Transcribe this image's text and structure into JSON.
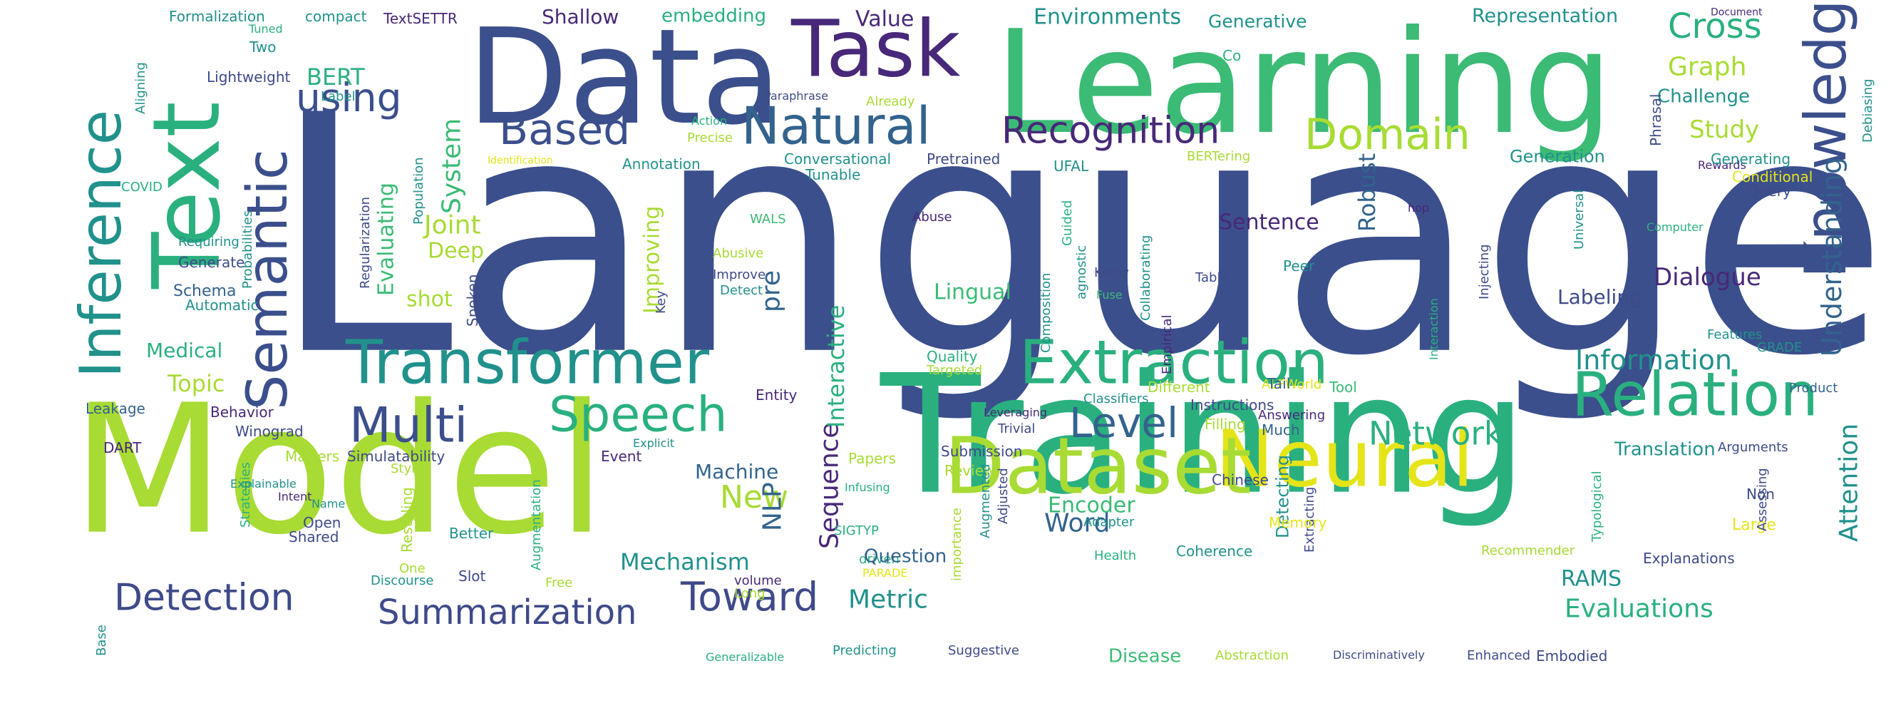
{
  "palette": {
    "navy": "#3b4f8c",
    "blue": "#33638d",
    "teal": "#21918c",
    "sea": "#2ab07f",
    "green": "#3bbb75",
    "lime": "#a8db34",
    "yellow": "#e5e419",
    "purple": "#482878",
    "violet": "#3e4a89"
  },
  "words": [
    {
      "text": "Language"
    },
    {
      "text": "Model"
    },
    {
      "text": "Training"
    },
    {
      "text": "Learning"
    },
    {
      "text": "Data"
    },
    {
      "text": "Text"
    },
    {
      "text": "Task"
    },
    {
      "text": "Neural"
    },
    {
      "text": "Dataset"
    },
    {
      "text": "Knowledge"
    },
    {
      "text": "Inference"
    },
    {
      "text": "Transformer"
    },
    {
      "text": "Extraction"
    },
    {
      "text": "Relation"
    },
    {
      "text": "Semantic"
    },
    {
      "text": "Natural"
    },
    {
      "text": "Speech"
    },
    {
      "text": "Multi"
    },
    {
      "text": "Recognition"
    },
    {
      "text": "Based"
    },
    {
      "text": "Domain"
    },
    {
      "text": "Level"
    },
    {
      "text": "Detection"
    },
    {
      "text": "Summarization"
    },
    {
      "text": "Toward"
    },
    {
      "text": "Understanding"
    },
    {
      "text": "using"
    },
    {
      "text": "Cross"
    },
    {
      "text": "Network"
    },
    {
      "text": "Information"
    },
    {
      "text": "Attention"
    },
    {
      "text": "Dialogue"
    },
    {
      "text": "Sequence"
    },
    {
      "text": "Interactive"
    },
    {
      "text": "Improving"
    },
    {
      "text": "Evaluating"
    },
    {
      "text": "Environments"
    },
    {
      "text": "Representation"
    },
    {
      "text": "Generative"
    },
    {
      "text": "Value"
    },
    {
      "text": "Shallow"
    },
    {
      "text": "embedding"
    },
    {
      "text": "Formalization"
    },
    {
      "text": "compact"
    },
    {
      "text": "TextSETTR"
    },
    {
      "text": "Two"
    },
    {
      "text": "Lightweight"
    },
    {
      "text": "BERT"
    },
    {
      "text": "Tuned"
    },
    {
      "text": "Aligning"
    },
    {
      "text": "Label"
    },
    {
      "text": "Paraphrase"
    },
    {
      "text": "Already"
    },
    {
      "text": "Action"
    },
    {
      "text": "Precise"
    },
    {
      "text": "Identification"
    },
    {
      "text": "Annotation"
    },
    {
      "text": "Conversational"
    },
    {
      "text": "Pretrained"
    },
    {
      "text": "UFAL"
    },
    {
      "text": "BERTering"
    },
    {
      "text": "Rewards"
    },
    {
      "text": "Generation"
    },
    {
      "text": "Study"
    },
    {
      "text": "Graph"
    },
    {
      "text": "Challenge"
    },
    {
      "text": "Document"
    },
    {
      "text": "Debiasing"
    },
    {
      "text": "Phrasal"
    },
    {
      "text": "Generating"
    },
    {
      "text": "Conditional"
    },
    {
      "text": "Query"
    },
    {
      "text": "Co"
    },
    {
      "text": "System"
    },
    {
      "text": "Joint"
    },
    {
      "text": "Deep"
    },
    {
      "text": "shot"
    },
    {
      "text": "pre"
    },
    {
      "text": "Robust"
    },
    {
      "text": "Sentence"
    },
    {
      "text": "Lingual"
    },
    {
      "text": "Labeling"
    },
    {
      "text": "Regularization"
    },
    {
      "text": "Population"
    },
    {
      "text": "COVID"
    },
    {
      "text": "Probabilities"
    },
    {
      "text": "Requiring"
    },
    {
      "text": "Generate"
    },
    {
      "text": "Schema"
    },
    {
      "text": "Automatic"
    },
    {
      "text": "Medical"
    },
    {
      "text": "Topic"
    },
    {
      "text": "Leakage"
    },
    {
      "text": "Behavior"
    },
    {
      "text": "Winograd"
    },
    {
      "text": "DART"
    },
    {
      "text": "Matters"
    },
    {
      "text": "Simulatability"
    },
    {
      "text": "Style"
    },
    {
      "text": "Strategies"
    },
    {
      "text": "Explainable"
    },
    {
      "text": "Intent"
    },
    {
      "text": "Name"
    },
    {
      "text": "Spoken"
    },
    {
      "text": "Restyling"
    },
    {
      "text": "Open"
    },
    {
      "text": "Shared"
    },
    {
      "text": "Better"
    },
    {
      "text": "Slot"
    },
    {
      "text": "One"
    },
    {
      "text": "Discourse"
    },
    {
      "text": "Free"
    },
    {
      "text": "Generalizable"
    },
    {
      "text": "Base"
    },
    {
      "text": "Augmentation"
    },
    {
      "text": "Mechanism"
    },
    {
      "text": "Machine"
    },
    {
      "text": "New"
    },
    {
      "text": "NLP"
    },
    {
      "text": "Event"
    },
    {
      "text": "Explicit"
    },
    {
      "text": "Tunable"
    },
    {
      "text": "WALS"
    },
    {
      "text": "Abuse"
    },
    {
      "text": "Abusive"
    },
    {
      "text": "Improve"
    },
    {
      "text": "Detect"
    },
    {
      "text": "Key"
    },
    {
      "text": "Entity"
    },
    {
      "text": "Quality"
    },
    {
      "text": "Targeted"
    },
    {
      "text": "Leveraging"
    },
    {
      "text": "Trivial"
    },
    {
      "text": "Submission"
    },
    {
      "text": "Papers"
    },
    {
      "text": "Review"
    },
    {
      "text": "Infusing"
    },
    {
      "text": "SIGTYP"
    },
    {
      "text": "driven"
    },
    {
      "text": "volume"
    },
    {
      "text": "Long"
    },
    {
      "text": "PARADE"
    },
    {
      "text": "Predicting"
    },
    {
      "text": "Suggestive"
    },
    {
      "text": "Question"
    },
    {
      "text": "Metric"
    },
    {
      "text": "importance"
    },
    {
      "text": "Augmented"
    },
    {
      "text": "Adjusted"
    },
    {
      "text": "Composition"
    },
    {
      "text": "Guided"
    },
    {
      "text": "agnostic"
    },
    {
      "text": "Know"
    },
    {
      "text": "Fuse"
    },
    {
      "text": "Collaborating"
    },
    {
      "text": "Empirical"
    },
    {
      "text": "Table"
    },
    {
      "text": "Peer"
    },
    {
      "text": "Different"
    },
    {
      "text": "ALFWorld"
    },
    {
      "text": "Classifiers"
    },
    {
      "text": "Instructions"
    },
    {
      "text": "Answering"
    },
    {
      "text": "Filling"
    },
    {
      "text": "Much"
    },
    {
      "text": "Tail"
    },
    {
      "text": "Tool"
    },
    {
      "text": "Chinese"
    },
    {
      "text": "Word"
    },
    {
      "text": "Encoder"
    },
    {
      "text": "Adapter"
    },
    {
      "text": "Detecting"
    },
    {
      "text": "Extracting"
    },
    {
      "text": "Memory"
    },
    {
      "text": "Coherence"
    },
    {
      "text": "Health"
    },
    {
      "text": "Disease"
    },
    {
      "text": "Abstraction"
    },
    {
      "text": "Discriminatively"
    },
    {
      "text": "Enhanced"
    },
    {
      "text": "Embodied"
    },
    {
      "text": "Evaluations"
    },
    {
      "text": "RAMS"
    },
    {
      "text": "Explanations"
    },
    {
      "text": "Recommender"
    },
    {
      "text": "Translation"
    },
    {
      "text": "Arguments"
    },
    {
      "text": "Non"
    },
    {
      "text": "Large"
    },
    {
      "text": "Typological"
    },
    {
      "text": "Assessing"
    },
    {
      "text": "Product"
    },
    {
      "text": "GRADE"
    },
    {
      "text": "Features"
    },
    {
      "text": "Computer"
    },
    {
      "text": "Interaction"
    },
    {
      "text": "Injecting"
    },
    {
      "text": "Universal"
    },
    {
      "text": "hop"
    }
  ]
}
